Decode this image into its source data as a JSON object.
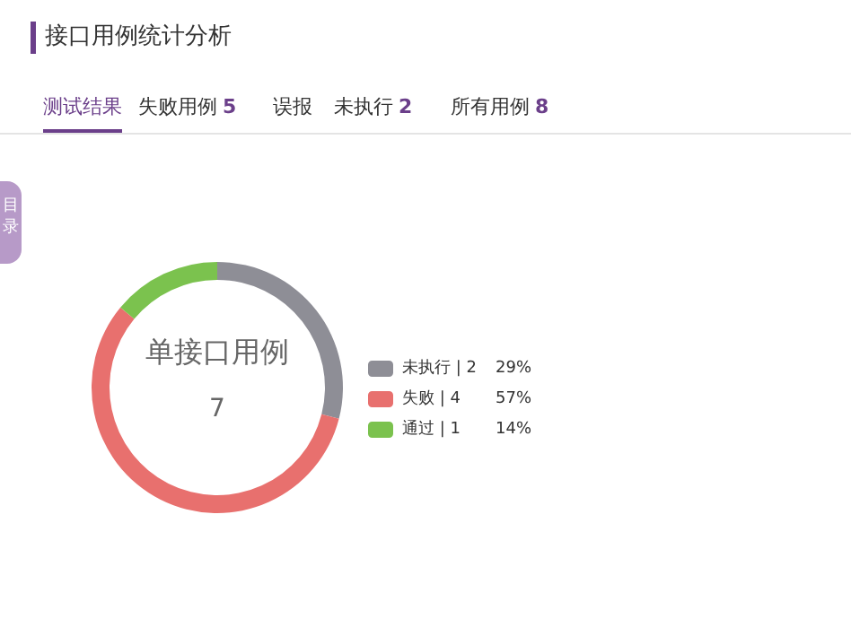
{
  "chart_data": {
    "type": "donut",
    "title": "接口用例统计分析",
    "categories": [
      "未执行 | 2",
      "失败 | 4",
      "通过 | 1"
    ],
    "values": [
      29,
      57,
      14
    ],
    "colors": [
      "#8e8e96",
      "#e8706e",
      "#7bc24e"
    ],
    "value_labels": [
      "29%",
      "57%",
      "14%"
    ],
    "legend": "right",
    "annotations": [
      "单接口用例",
      "7",
      "测试结果",
      "失败用例 5",
      "误报",
      "未执行 2",
      "所有用例 8",
      "目录"
    ]
  }
}
